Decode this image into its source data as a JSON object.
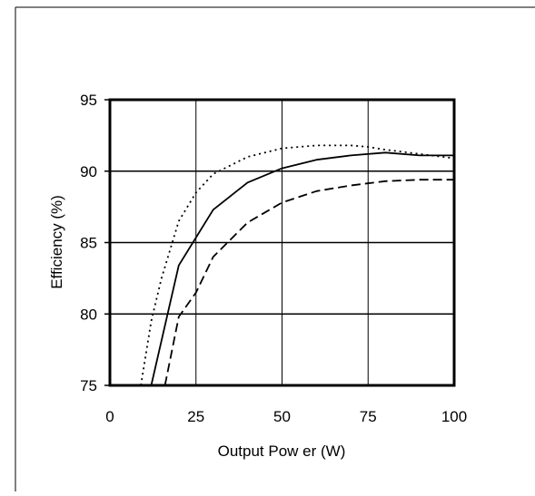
{
  "chart_data": {
    "type": "line",
    "title": "",
    "xlabel": "Output Pow er (W)",
    "ylabel": "Efficiency (%)",
    "xlim": [
      0,
      100
    ],
    "ylim": [
      75,
      95
    ],
    "x_ticks": [
      "0",
      "25",
      "50",
      "75",
      "100"
    ],
    "y_ticks": [
      "75",
      "80",
      "85",
      "90",
      "95"
    ],
    "grid": "on",
    "legend": "none",
    "series": [
      {
        "style": "solid",
        "color": "#000000",
        "x": [
          12,
          20,
          30,
          40,
          50,
          60,
          70,
          80,
          90,
          100
        ],
        "y": [
          75,
          83.4,
          87.3,
          89.2,
          90.2,
          90.8,
          91.1,
          91.3,
          91.1,
          91.1
        ]
      },
      {
        "style": "dotted",
        "color": "#000000",
        "x": [
          9,
          12,
          15,
          20,
          25,
          30,
          40,
          50,
          60,
          70,
          75,
          80,
          90,
          100
        ],
        "y": [
          75,
          79.5,
          82.5,
          86.5,
          88.5,
          89.8,
          91.0,
          91.6,
          91.8,
          91.8,
          91.7,
          91.5,
          91.2,
          90.9
        ]
      },
      {
        "style": "dashed",
        "color": "#000000",
        "x": [
          16,
          20,
          25,
          30,
          40,
          50,
          60,
          70,
          80,
          90,
          100
        ],
        "y": [
          75,
          79.8,
          81.5,
          84.0,
          86.4,
          87.8,
          88.6,
          89.0,
          89.3,
          89.4,
          89.4
        ]
      }
    ]
  }
}
